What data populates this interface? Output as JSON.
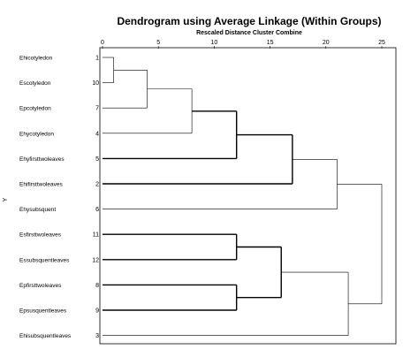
{
  "chart_data": {
    "type": "dendrogram",
    "title": "Dendrogram using Average Linkage (Within Groups)",
    "subtitle": "Rescaled Distance Cluster Combine",
    "ylabel": "Y",
    "xlim": [
      0,
      25
    ],
    "x_ticks": [
      0,
      5,
      10,
      15,
      20,
      25
    ],
    "leaves": [
      {
        "label": "Ehicotyledon",
        "case": "1"
      },
      {
        "label": "Escotyledon",
        "case": "10"
      },
      {
        "label": "Epcotyledon",
        "case": "7"
      },
      {
        "label": "Ehycotyledon",
        "case": "4"
      },
      {
        "label": "Ehyfirsttwoleaves",
        "case": "5"
      },
      {
        "label": "Ehifirsttwoleaves",
        "case": "2"
      },
      {
        "label": "Ehysubsquent",
        "case": "6"
      },
      {
        "label": "Esfirsttwoleaves",
        "case": "11"
      },
      {
        "label": "Essubsquentleaves",
        "case": "12"
      },
      {
        "label": "Epfirsttwoleaves",
        "case": "8"
      },
      {
        "label": "Epsusquentleaves",
        "case": "9"
      },
      {
        "label": "Ehisubsquentleaves",
        "case": "3"
      }
    ],
    "merges": [
      {
        "id": "A",
        "children": [
          0,
          1
        ],
        "height": 1
      },
      {
        "id": "B",
        "children": [
          "A",
          2
        ],
        "height": 4
      },
      {
        "id": "C",
        "children": [
          "B",
          3
        ],
        "height": 8
      },
      {
        "id": "D",
        "children": [
          "C",
          4
        ],
        "height": 12
      },
      {
        "id": "E",
        "children": [
          "D",
          5
        ],
        "height": 17
      },
      {
        "id": "F",
        "children": [
          "E",
          6
        ],
        "height": 21
      },
      {
        "id": "G",
        "children": [
          7,
          8
        ],
        "height": 12
      },
      {
        "id": "H",
        "children": [
          9,
          10
        ],
        "height": 12
      },
      {
        "id": "I",
        "children": [
          "G",
          "H"
        ],
        "height": 16
      },
      {
        "id": "J",
        "children": [
          "I",
          11
        ],
        "height": 22
      },
      {
        "id": "K",
        "children": [
          "F",
          "J"
        ],
        "height": 25
      }
    ]
  }
}
